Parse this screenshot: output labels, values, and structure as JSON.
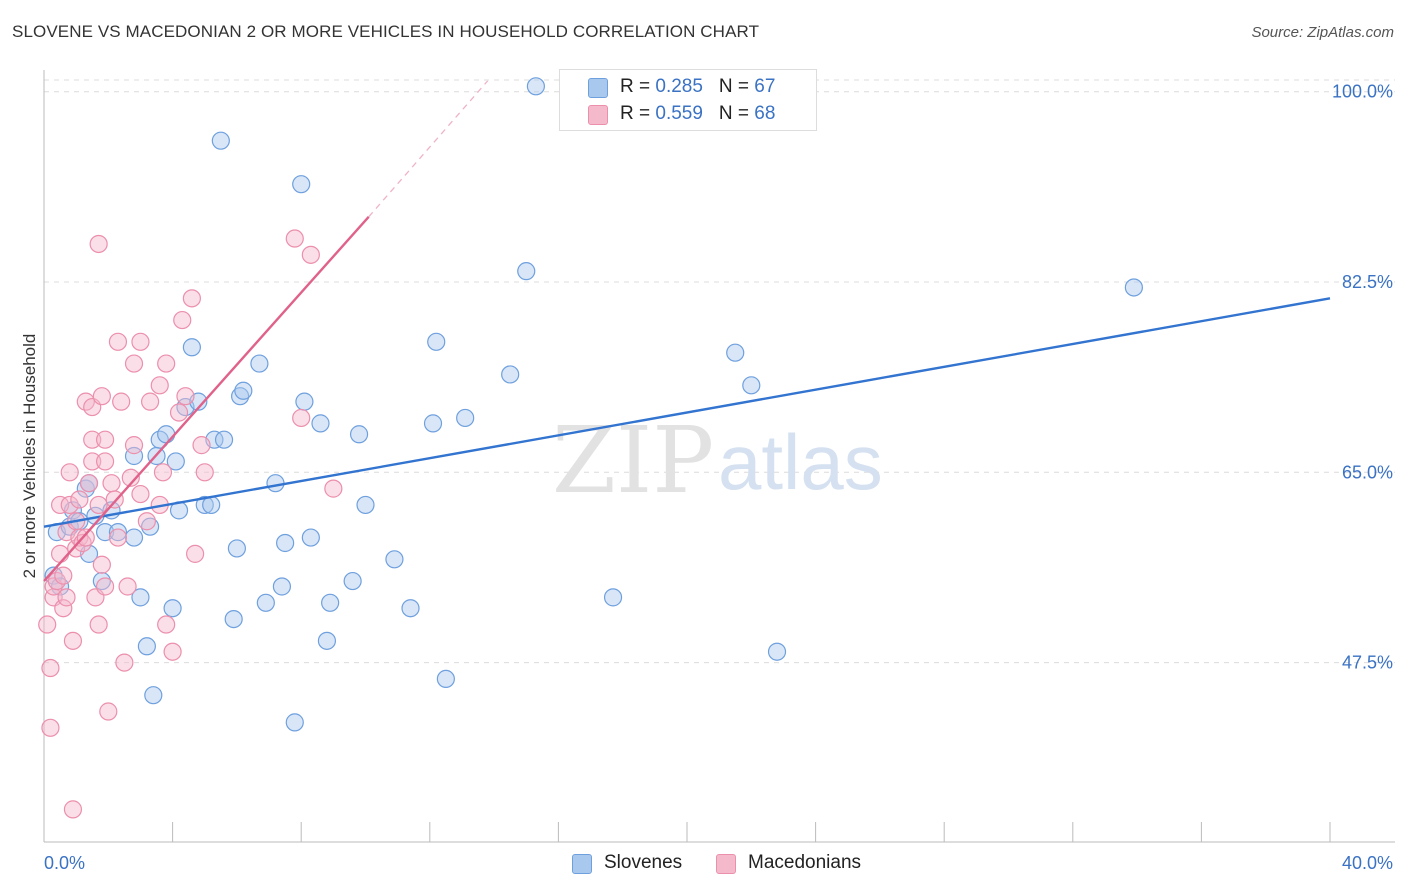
{
  "title": "SLOVENE VS MACEDONIAN 2 OR MORE VEHICLES IN HOUSEHOLD CORRELATION CHART",
  "source": "Source: ZipAtlas.com",
  "legend_stats": [
    {
      "name": "Slovenes",
      "r_label": "R = ",
      "r_value": "0.285",
      "n_label": "N = ",
      "n_value": "67",
      "color": "#a9c8ee"
    },
    {
      "name": "Macedonians",
      "r_label": "R = ",
      "r_value": "0.559",
      "n_label": "N = ",
      "n_value": "68",
      "color": "#f5b9cc"
    }
  ],
  "watermark": {
    "zip": "ZIP",
    "atlas": "atlas"
  },
  "chart_data": {
    "type": "scatter",
    "title": "SLOVENE VS MACEDONIAN 2 OR MORE VEHICLES IN HOUSEHOLD CORRELATION CHART",
    "xlabel": "",
    "ylabel": "2 or more Vehicles in Household",
    "xlim": [
      0,
      40
    ],
    "ylim": [
      31,
      102
    ],
    "x_tick_labels": [
      "0.0%",
      "40.0%"
    ],
    "y_ticks": [
      47.5,
      65.0,
      82.5,
      100.0
    ],
    "y_tick_labels": [
      "47.5%",
      "65.0%",
      "82.5%",
      "100.0%"
    ],
    "series": [
      {
        "name": "Slovenes",
        "color": "#a9c8ee",
        "stroke": "#6fa0de",
        "trend_color": "#3274d0",
        "trend": {
          "x0": 0,
          "y0": 60.0,
          "x1": 40,
          "y1": 81.0
        },
        "points": [
          [
            0.3,
            55.5
          ],
          [
            0.5,
            54.5
          ],
          [
            0.4,
            59.5
          ],
          [
            0.8,
            60.0
          ],
          [
            0.9,
            61.5
          ],
          [
            1.3,
            63.5
          ],
          [
            1.1,
            60.5
          ],
          [
            1.4,
            64.0
          ],
          [
            1.4,
            57.5
          ],
          [
            1.6,
            61.0
          ],
          [
            1.8,
            55.0
          ],
          [
            1.9,
            59.5
          ],
          [
            2.1,
            61.5
          ],
          [
            2.3,
            59.5
          ],
          [
            2.8,
            66.5
          ],
          [
            2.8,
            59.0
          ],
          [
            3.0,
            53.5
          ],
          [
            3.2,
            49.0
          ],
          [
            3.3,
            60.0
          ],
          [
            3.4,
            44.5
          ],
          [
            3.5,
            66.5
          ],
          [
            3.6,
            68.0
          ],
          [
            3.8,
            68.5
          ],
          [
            4.0,
            52.5
          ],
          [
            4.1,
            66.0
          ],
          [
            4.2,
            61.5
          ],
          [
            4.4,
            71.0
          ],
          [
            4.6,
            76.5
          ],
          [
            4.8,
            71.5
          ],
          [
            5.0,
            62.0
          ],
          [
            5.2,
            62.0
          ],
          [
            5.3,
            68.0
          ],
          [
            5.5,
            95.5
          ],
          [
            5.6,
            68.0
          ],
          [
            5.9,
            51.5
          ],
          [
            6.0,
            58.0
          ],
          [
            6.1,
            72.0
          ],
          [
            6.2,
            72.5
          ],
          [
            6.7,
            75.0
          ],
          [
            6.9,
            53.0
          ],
          [
            7.2,
            64.0
          ],
          [
            7.4,
            54.5
          ],
          [
            7.5,
            58.5
          ],
          [
            7.8,
            42.0
          ],
          [
            8.0,
            91.5
          ],
          [
            8.1,
            71.5
          ],
          [
            8.3,
            59.0
          ],
          [
            8.6,
            69.5
          ],
          [
            8.8,
            49.5
          ],
          [
            8.9,
            53.0
          ],
          [
            9.6,
            55.0
          ],
          [
            9.8,
            68.5
          ],
          [
            10.0,
            62.0
          ],
          [
            10.9,
            57.0
          ],
          [
            11.4,
            52.5
          ],
          [
            12.2,
            77.0
          ],
          [
            12.5,
            46.0
          ],
          [
            12.1,
            69.5
          ],
          [
            13.1,
            70.0
          ],
          [
            14.5,
            74.0
          ],
          [
            15.0,
            83.5
          ],
          [
            15.3,
            100.5
          ],
          [
            17.7,
            53.5
          ],
          [
            21.5,
            76.0
          ],
          [
            22.0,
            73.0
          ],
          [
            22.8,
            48.5
          ],
          [
            33.9,
            82.0
          ]
        ]
      },
      {
        "name": "Macedonians",
        "color": "#f5b9cc",
        "stroke": "#ec8fac",
        "trend_color": "#e0628a",
        "trend": {
          "x0": 0,
          "y0": 55.0,
          "x1": 10.1,
          "y1": 88.5
        },
        "trend_dash": {
          "x0": 10.1,
          "y0": 88.5,
          "x1": 13.8,
          "y1": 101.0
        },
        "points": [
          [
            0.1,
            51.0
          ],
          [
            0.2,
            41.5
          ],
          [
            0.2,
            47.0
          ],
          [
            0.3,
            53.5
          ],
          [
            0.3,
            54.5
          ],
          [
            0.4,
            55.0
          ],
          [
            0.5,
            62.0
          ],
          [
            0.5,
            57.5
          ],
          [
            0.6,
            52.5
          ],
          [
            0.6,
            55.5
          ],
          [
            0.7,
            53.5
          ],
          [
            0.7,
            59.5
          ],
          [
            0.8,
            65.0
          ],
          [
            0.8,
            62.0
          ],
          [
            0.9,
            34.0
          ],
          [
            0.9,
            49.5
          ],
          [
            1.0,
            58.0
          ],
          [
            1.0,
            60.5
          ],
          [
            1.1,
            59.0
          ],
          [
            1.1,
            62.5
          ],
          [
            1.2,
            58.5
          ],
          [
            1.3,
            59.0
          ],
          [
            1.3,
            71.5
          ],
          [
            1.4,
            64.0
          ],
          [
            1.5,
            66.0
          ],
          [
            1.5,
            68.0
          ],
          [
            1.5,
            71.0
          ],
          [
            1.6,
            53.5
          ],
          [
            1.7,
            51.0
          ],
          [
            1.7,
            62.0
          ],
          [
            1.8,
            56.5
          ],
          [
            1.8,
            72.0
          ],
          [
            1.9,
            54.5
          ],
          [
            1.9,
            66.0
          ],
          [
            1.9,
            68.0
          ],
          [
            1.7,
            86.0
          ],
          [
            2.0,
            43.0
          ],
          [
            2.1,
            64.0
          ],
          [
            2.2,
            62.5
          ],
          [
            2.3,
            77.0
          ],
          [
            2.3,
            59.0
          ],
          [
            2.4,
            71.5
          ],
          [
            2.5,
            47.5
          ],
          [
            2.6,
            54.5
          ],
          [
            2.7,
            64.5
          ],
          [
            2.8,
            67.5
          ],
          [
            2.8,
            75.0
          ],
          [
            3.0,
            63.0
          ],
          [
            3.0,
            77.0
          ],
          [
            3.2,
            60.5
          ],
          [
            3.3,
            71.5
          ],
          [
            3.6,
            73.0
          ],
          [
            3.6,
            62.0
          ],
          [
            3.7,
            65.0
          ],
          [
            3.8,
            75.0
          ],
          [
            3.8,
            51.0
          ],
          [
            4.0,
            48.5
          ],
          [
            4.2,
            70.5
          ],
          [
            4.4,
            72.0
          ],
          [
            4.3,
            79.0
          ],
          [
            4.6,
            81.0
          ],
          [
            4.7,
            57.5
          ],
          [
            4.9,
            67.5
          ],
          [
            5.0,
            65.0
          ],
          [
            8.0,
            70.0
          ],
          [
            7.8,
            86.5
          ],
          [
            8.3,
            85.0
          ],
          [
            9.0,
            63.5
          ]
        ]
      }
    ]
  }
}
